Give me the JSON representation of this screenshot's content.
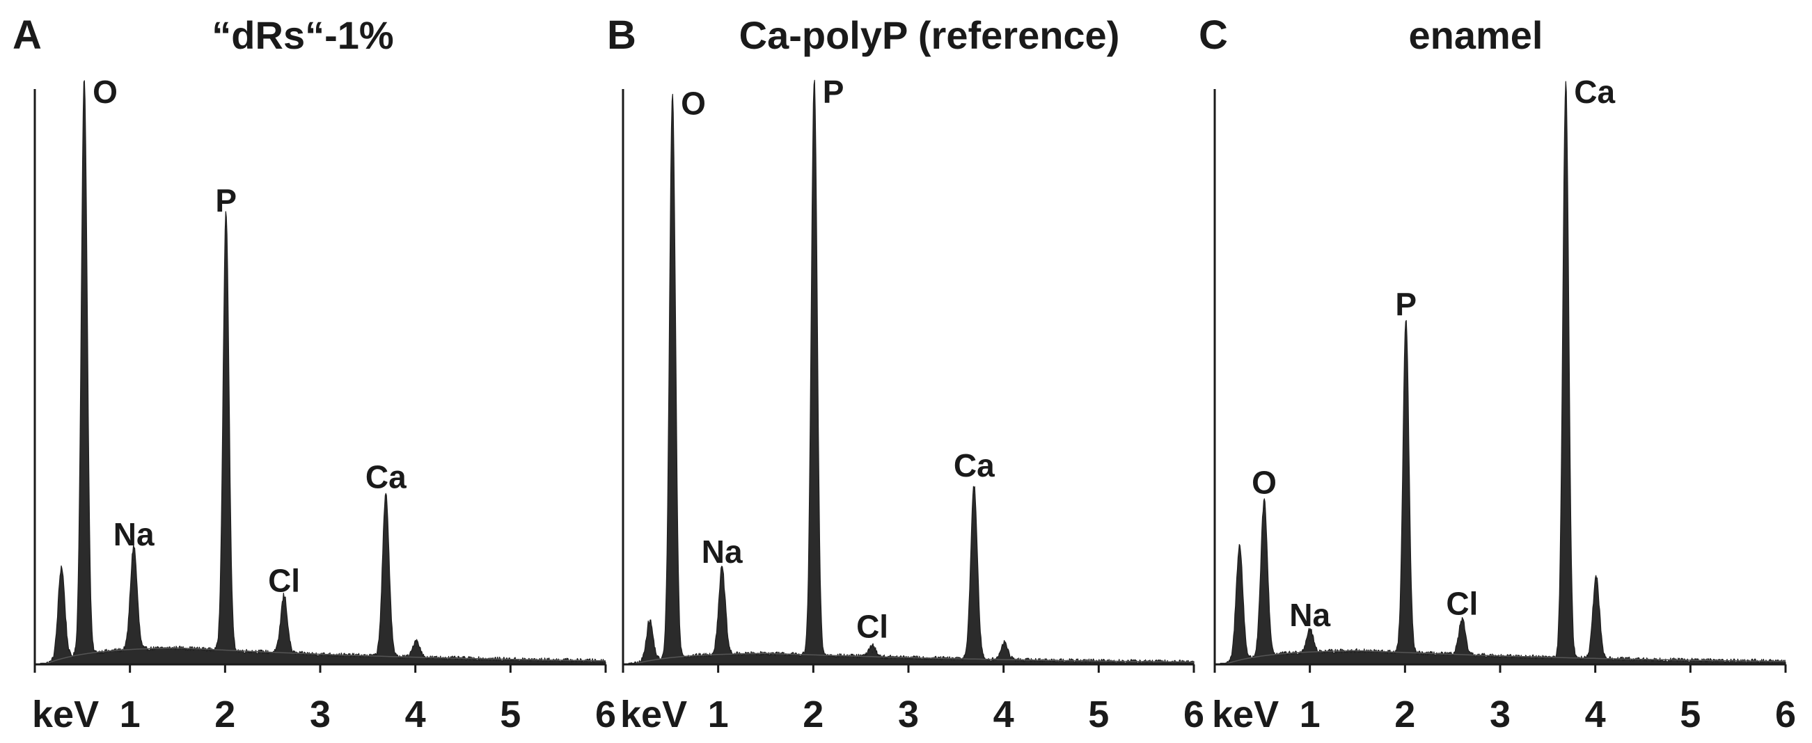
{
  "chart_data": [
    {
      "type": "area",
      "panel_letter": "A",
      "title": "“dRs“-1%",
      "xlabel": "keV",
      "ylabel": "",
      "xlim": [
        0,
        6
      ],
      "xticks": [
        "keV",
        "1",
        "2",
        "3",
        "4",
        "5",
        "6"
      ],
      "grid": false,
      "peaks": [
        {
          "x": 0.28,
          "y": 0.16
        },
        {
          "x": 0.52,
          "y": 1.0,
          "label": "O"
        },
        {
          "x": 1.04,
          "y": 0.18,
          "label": "Na"
        },
        {
          "x": 2.01,
          "y": 0.76,
          "label": "P"
        },
        {
          "x": 2.62,
          "y": 0.1,
          "label": "Cl"
        },
        {
          "x": 3.69,
          "y": 0.28,
          "label": "Ca"
        },
        {
          "x": 4.01,
          "y": 0.03
        }
      ],
      "background_level": 0.03
    },
    {
      "type": "area",
      "panel_letter": "B",
      "title": "Ca-polyP (reference)",
      "xlabel": "keV",
      "ylabel": "",
      "xlim": [
        0,
        6
      ],
      "xticks": [
        "keV",
        "1",
        "2",
        "3",
        "4",
        "5",
        "6"
      ],
      "grid": false,
      "peaks": [
        {
          "x": 0.28,
          "y": 0.07
        },
        {
          "x": 0.52,
          "y": 0.98,
          "label": "O"
        },
        {
          "x": 1.04,
          "y": 0.15,
          "label": "Na"
        },
        {
          "x": 2.01,
          "y": 1.0,
          "label": "P"
        },
        {
          "x": 2.62,
          "y": 0.02,
          "label": "Cl"
        },
        {
          "x": 3.69,
          "y": 0.3,
          "label": "Ca"
        },
        {
          "x": 4.01,
          "y": 0.03
        }
      ],
      "background_level": 0.02
    },
    {
      "type": "area",
      "panel_letter": "C",
      "title": "enamel",
      "xlabel": "keV",
      "ylabel": "",
      "xlim": [
        0,
        6
      ],
      "xticks": [
        "keV",
        "1",
        "2",
        "3",
        "4",
        "5",
        "6"
      ],
      "grid": false,
      "peaks": [
        {
          "x": 0.26,
          "y": 0.2
        },
        {
          "x": 0.52,
          "y": 0.27,
          "label": "O"
        },
        {
          "x": 1.0,
          "y": 0.04,
          "label": "Na"
        },
        {
          "x": 2.01,
          "y": 0.58,
          "label": "P"
        },
        {
          "x": 2.6,
          "y": 0.06,
          "label": "Cl"
        },
        {
          "x": 3.69,
          "y": 1.0,
          "label": "Ca"
        },
        {
          "x": 4.01,
          "y": 0.14
        }
      ],
      "background_level": 0.025
    }
  ]
}
